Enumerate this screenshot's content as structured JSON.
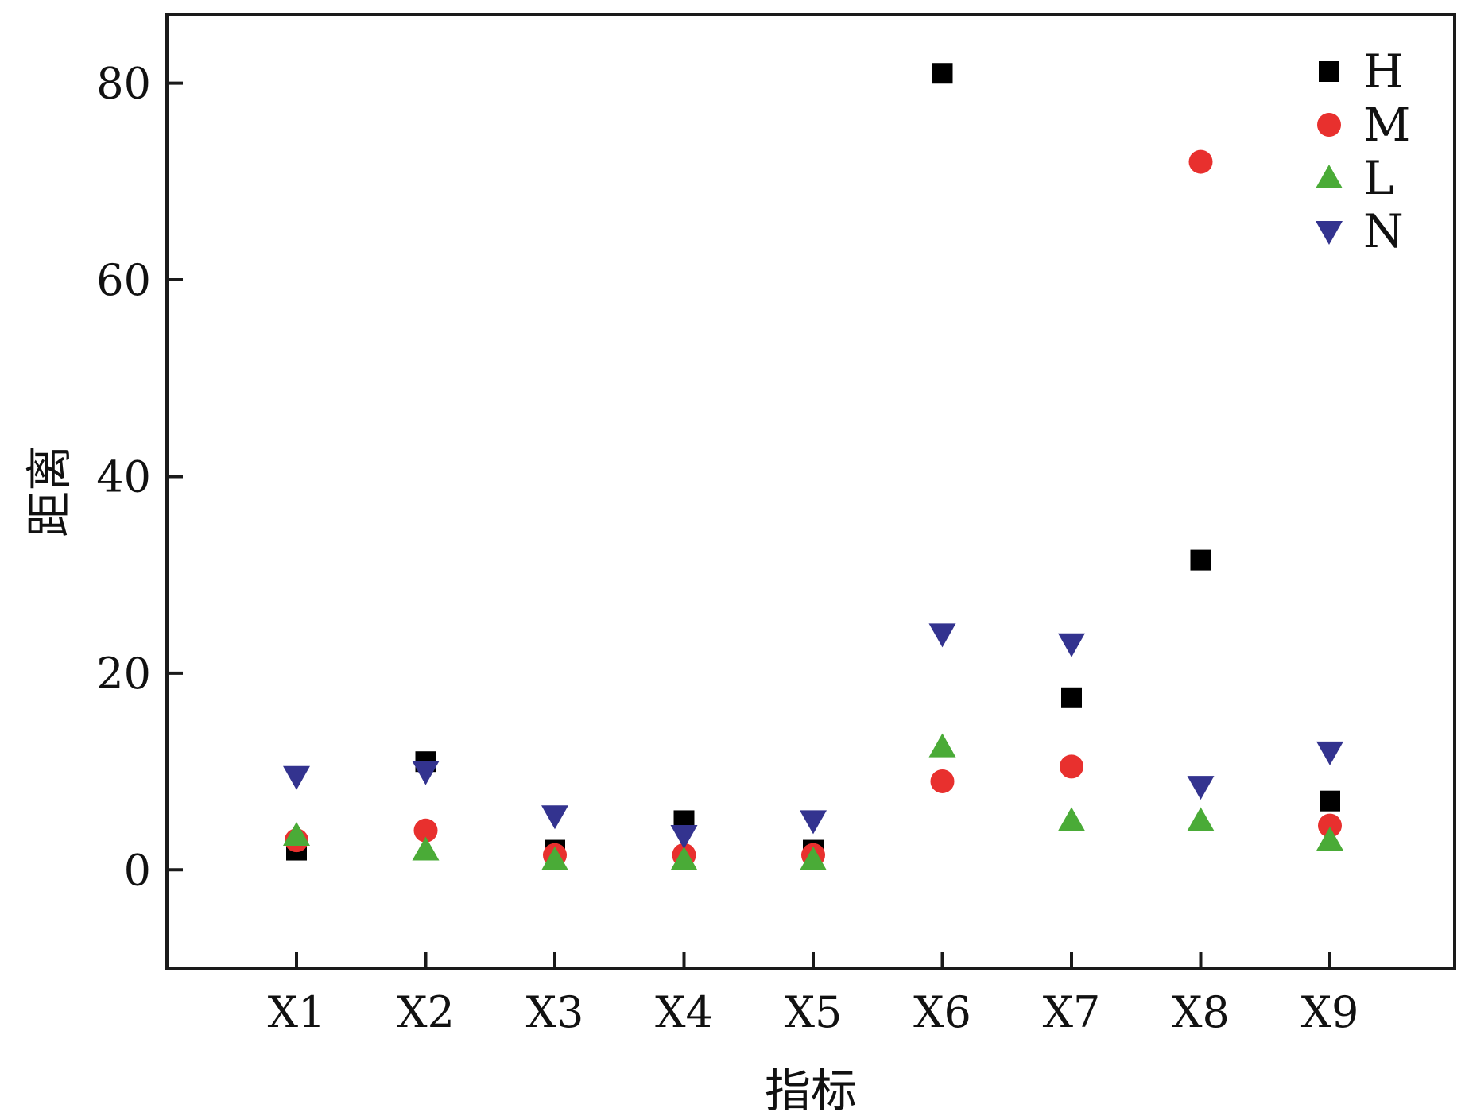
{
  "chart_data": {
    "type": "scatter",
    "xlabel": "指标",
    "ylabel": "距离",
    "categories": [
      "X1",
      "X2",
      "X3",
      "X4",
      "X5",
      "X6",
      "X7",
      "X8",
      "X9"
    ],
    "ylim": [
      -10,
      87
    ],
    "yticks": [
      0,
      20,
      40,
      60,
      80
    ],
    "grid": false,
    "legend_position": "top-right",
    "series": [
      {
        "name": "H",
        "marker": "square",
        "color": "#000000",
        "values": [
          2.0,
          11.0,
          2.0,
          5.0,
          2.0,
          81.0,
          17.5,
          31.5,
          7.0
        ]
      },
      {
        "name": "M",
        "marker": "circle",
        "color": "#e8302e",
        "values": [
          3.0,
          4.0,
          1.5,
          1.5,
          1.5,
          9.0,
          10.5,
          72.0,
          4.5
        ]
      },
      {
        "name": "L",
        "marker": "triangle-up",
        "color": "#4aab37",
        "values": [
          3.5,
          2.0,
          1.0,
          1.0,
          1.0,
          12.5,
          5.0,
          5.0,
          3.0
        ]
      },
      {
        "name": "N",
        "marker": "triangle-down",
        "color": "#33338f",
        "values": [
          9.5,
          10.0,
          5.5,
          3.5,
          5.0,
          24.0,
          23.0,
          8.5,
          12.0
        ]
      }
    ]
  }
}
